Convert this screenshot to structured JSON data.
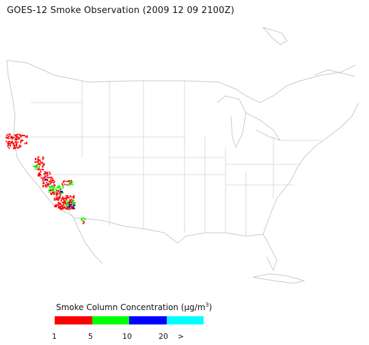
{
  "title": "GOES-12 Smoke Observation (2009 12 09  2100Z)",
  "legend": {
    "title_prefix": "Smoke Column Concentration (",
    "title_unit_base": "μg/m",
    "title_unit_exp": "3",
    "title_suffix": ")",
    "bins": [
      {
        "label": "1-5",
        "color": "#ff0000"
      },
      {
        "label": "5-10",
        "color": "#00ff00"
      },
      {
        "label": "10-20",
        "color": "#0000ff"
      },
      {
        "label": ">20",
        "color": "#00ffff"
      }
    ],
    "ticks": [
      "1",
      "5",
      "10",
      "20",
      ">"
    ]
  },
  "map_style": {
    "land_line": "#c8c8c8",
    "border_line": "#c0c0c0"
  }
}
